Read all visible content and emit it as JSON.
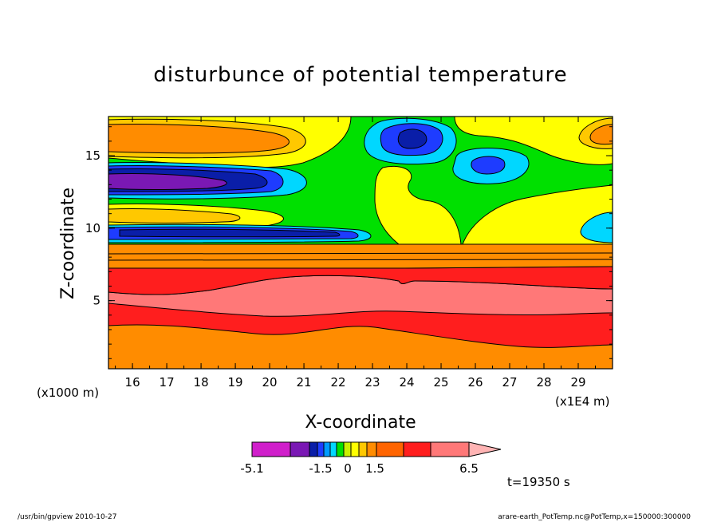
{
  "chart_data": {
    "type": "heatmap",
    "title": "disturbunce of potential temperature",
    "xlabel": "X-coordinate",
    "ylabel": "Z-coordinate",
    "x_unit": "(x1E4 m)",
    "y_unit": "(x1000 m)",
    "x_ticks": [
      "16",
      "17",
      "18",
      "19",
      "20",
      "21",
      "22",
      "23",
      "24",
      "25",
      "26",
      "27",
      "28",
      "29"
    ],
    "y_ticks": [
      "5",
      "10",
      "15"
    ],
    "xlim": [
      15.3,
      30.0
    ],
    "ylim": [
      0.3,
      17.7
    ],
    "colorbar": {
      "colors": [
        "#d01fcb",
        "#7a18b4",
        "#0a1ea8",
        "#1e3cff",
        "#009bff",
        "#00d7ff",
        "#00e000",
        "#c8f000",
        "#ffff00",
        "#ffc800",
        "#ff8c00",
        "#ff6400",
        "#ff1e1e",
        "#ff7878",
        "#ffb4b4"
      ],
      "labels": [
        "-5.1",
        "-1.5",
        "0",
        "1.5",
        "6.5"
      ],
      "label_values": [
        -5.1,
        -1.5,
        0,
        1.5,
        6.5
      ]
    },
    "bands": [
      {
        "z_bottom": 0.3,
        "z_top": 1.8,
        "value": 2.5,
        "color": "#ff8c00"
      },
      {
        "z_bottom": 1.8,
        "z_top": 3.8,
        "value": 4.0,
        "color": "#ff1e1e"
      },
      {
        "z_bottom": 3.8,
        "z_top": 5.5,
        "value": 5.5,
        "color": "#ff7878"
      },
      {
        "z_bottom": 5.5,
        "z_top": 7.0,
        "value": 4.0,
        "color": "#ff1e1e"
      },
      {
        "z_bottom": 7.0,
        "z_top": 8.5,
        "value": 2.5,
        "color": "#ff8c00"
      },
      {
        "z_bottom": 8.5,
        "z_top": 17.7,
        "value": 0.5,
        "color": "#00e000"
      }
    ],
    "blobs": [
      {
        "x": 18.0,
        "z": 16.3,
        "rx": 3.0,
        "rz": 1.3,
        "value": 2.5,
        "color": "#ff8c00"
      },
      {
        "x": 18.0,
        "z": 13.0,
        "rx": 3.2,
        "rz": 0.9,
        "value": -2.5,
        "color": "#0a1ea8"
      },
      {
        "x": 17.2,
        "z": 13.0,
        "rx": 2.0,
        "rz": 0.6,
        "value": -4.0,
        "color": "#7a18b4"
      },
      {
        "x": 18.5,
        "z": 9.7,
        "rx": 3.5,
        "rz": 0.4,
        "value": -2.0,
        "color": "#1e3cff"
      },
      {
        "x": 24.0,
        "z": 16.2,
        "rx": 1.4,
        "rz": 1.2,
        "value": -1.0,
        "color": "#009bff"
      },
      {
        "x": 26.3,
        "z": 14.4,
        "rx": 1.1,
        "rz": 0.9,
        "value": -1.0,
        "color": "#009bff"
      },
      {
        "x": 29.7,
        "z": 10.0,
        "rx": 0.9,
        "rz": 1.1,
        "value": -0.5,
        "color": "#00d7ff"
      },
      {
        "x": 29.5,
        "z": 16.5,
        "rx": 0.9,
        "rz": 1.0,
        "value": 1.5,
        "color": "#ffc800"
      }
    ]
  },
  "time_label": "t=19350 s",
  "footer": {
    "left": "/usr/bin/gpview   2010-10-27",
    "right": "arare-earth_PotTemp.nc@PotTemp,x=150000:300000"
  }
}
